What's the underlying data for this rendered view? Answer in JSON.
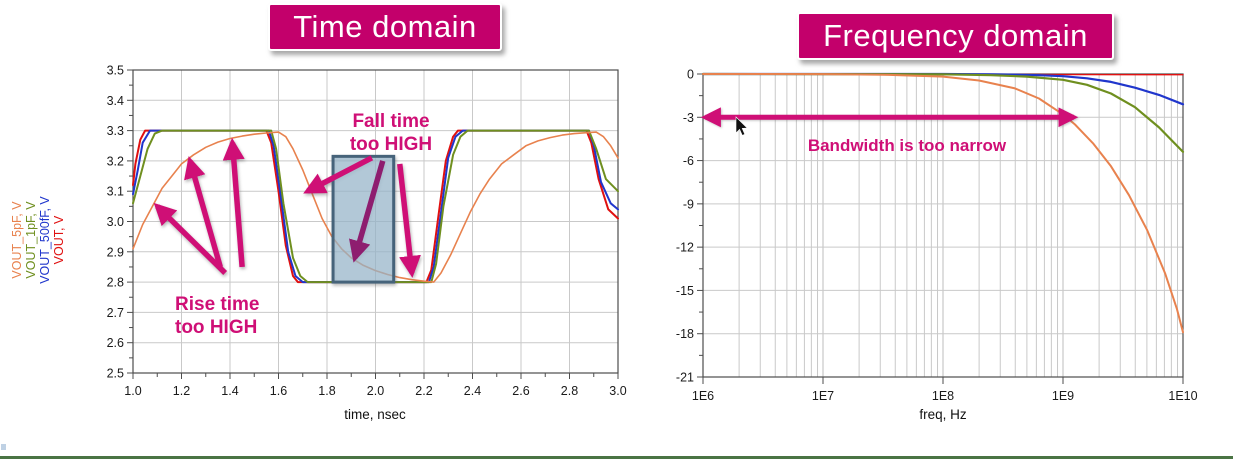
{
  "titles": {
    "time_domain": "Time domain",
    "frequency_domain": "Frequency domain"
  },
  "colors": {
    "badge_bg": "#c3006b",
    "badge_text": "#ffffff",
    "annotation_bright": "#cf0f76",
    "annotation_dark": "#8e1d6f",
    "trace_red": "#e01010",
    "trace_blue": "#2036cc",
    "trace_green": "#6f8f1f",
    "trace_orange": "#e8824e",
    "grid": "#c9c9c9",
    "axis": "#4d4d4d",
    "tick_text": "#1a1a1a",
    "highlight_fill": "#9fc4dc",
    "highlight_border": "#46637a",
    "footer_green": "#4a7444"
  },
  "icons": {
    "mouse_cursor": "black-arrow-pointer-icon"
  },
  "chart_data": [
    {
      "type": "line",
      "domain": "time",
      "xlabel": "time, nsec",
      "xlim": [
        1.0,
        3.0
      ],
      "xtick_labels": [
        "1.0",
        "1.2",
        "1.4",
        "1.6",
        "1.8",
        "2.0",
        "2.2",
        "2.4",
        "2.6",
        "2.8",
        "3.0"
      ],
      "ylim": [
        2.5,
        3.5
      ],
      "ytick_labels": [
        "2.5",
        "2.6",
        "2.7",
        "2.8",
        "2.9",
        "3.0",
        "3.1",
        "3.2",
        "3.3",
        "3.4",
        "3.5"
      ],
      "grid": true,
      "y_axis_series_labels": [
        {
          "text": "VOUT_5pF, V",
          "color_key": "trace_orange"
        },
        {
          "text": "VOUT_1pF, V",
          "color_key": "trace_green"
        },
        {
          "text": "VOUT_500fF, V",
          "color_key": "trace_blue"
        },
        {
          "text": "VOUT, V",
          "color_key": "trace_red"
        }
      ],
      "series": [
        {
          "name": "VOUT, V",
          "color_key": "trace_red",
          "width": 2,
          "points": [
            [
              1.0,
              3.12
            ],
            [
              1.01,
              3.19
            ],
            [
              1.03,
              3.27
            ],
            [
              1.05,
              3.3
            ],
            [
              1.55,
              3.3
            ],
            [
              1.57,
              3.26
            ],
            [
              1.6,
              3.1
            ],
            [
              1.63,
              2.92
            ],
            [
              1.66,
              2.82
            ],
            [
              1.68,
              2.8
            ],
            [
              2.21,
              2.8
            ],
            [
              2.23,
              2.84
            ],
            [
              2.26,
              3.02
            ],
            [
              2.29,
              3.2
            ],
            [
              2.32,
              3.28
            ],
            [
              2.34,
              3.3
            ],
            [
              2.87,
              3.3
            ],
            [
              2.89,
              3.26
            ],
            [
              2.92,
              3.14
            ],
            [
              2.96,
              3.04
            ],
            [
              3.0,
              3.01
            ]
          ]
        },
        {
          "name": "VOUT_500fF, V",
          "color_key": "trace_blue",
          "width": 2,
          "points": [
            [
              1.0,
              3.09
            ],
            [
              1.02,
              3.17
            ],
            [
              1.04,
              3.26
            ],
            [
              1.07,
              3.3
            ],
            [
              1.56,
              3.3
            ],
            [
              1.58,
              3.25
            ],
            [
              1.61,
              3.08
            ],
            [
              1.64,
              2.9
            ],
            [
              1.67,
              2.82
            ],
            [
              1.7,
              2.8
            ],
            [
              2.22,
              2.8
            ],
            [
              2.24,
              2.85
            ],
            [
              2.27,
              3.03
            ],
            [
              2.3,
              3.21
            ],
            [
              2.33,
              3.28
            ],
            [
              2.36,
              3.3
            ],
            [
              2.88,
              3.3
            ],
            [
              2.9,
              3.25
            ],
            [
              2.93,
              3.13
            ],
            [
              2.97,
              3.06
            ],
            [
              3.0,
              3.04
            ]
          ]
        },
        {
          "name": "VOUT_1pF, V",
          "color_key": "trace_green",
          "width": 2,
          "points": [
            [
              1.0,
              3.06
            ],
            [
              1.03,
              3.15
            ],
            [
              1.06,
              3.24
            ],
            [
              1.09,
              3.29
            ],
            [
              1.12,
              3.3
            ],
            [
              1.57,
              3.3
            ],
            [
              1.59,
              3.24
            ],
            [
              1.62,
              3.06
            ],
            [
              1.66,
              2.88
            ],
            [
              1.69,
              2.82
            ],
            [
              1.72,
              2.8
            ],
            [
              2.23,
              2.8
            ],
            [
              2.25,
              2.86
            ],
            [
              2.28,
              3.05
            ],
            [
              2.32,
              3.22
            ],
            [
              2.35,
              3.28
            ],
            [
              2.38,
              3.3
            ],
            [
              2.88,
              3.3
            ],
            [
              2.91,
              3.24
            ],
            [
              2.95,
              3.14
            ],
            [
              3.0,
              3.1
            ]
          ]
        },
        {
          "name": "VOUT_5pF, V",
          "color_key": "trace_orange",
          "width": 1.6,
          "points": [
            [
              1.0,
              2.91
            ],
            [
              1.04,
              2.99
            ],
            [
              1.08,
              3.05
            ],
            [
              1.12,
              3.11
            ],
            [
              1.16,
              3.15
            ],
            [
              1.2,
              3.19
            ],
            [
              1.25,
              3.22
            ],
            [
              1.3,
              3.245
            ],
            [
              1.35,
              3.262
            ],
            [
              1.4,
              3.274
            ],
            [
              1.45,
              3.282
            ],
            [
              1.5,
              3.288
            ],
            [
              1.55,
              3.292
            ],
            [
              1.6,
              3.295
            ],
            [
              1.63,
              3.28
            ],
            [
              1.66,
              3.24
            ],
            [
              1.7,
              3.17
            ],
            [
              1.74,
              3.09
            ],
            [
              1.78,
              3.01
            ],
            [
              1.82,
              2.95
            ],
            [
              1.86,
              2.91
            ],
            [
              1.9,
              2.88
            ],
            [
              1.95,
              2.855
            ],
            [
              2.0,
              2.838
            ],
            [
              2.05,
              2.825
            ],
            [
              2.1,
              2.815
            ],
            [
              2.15,
              2.808
            ],
            [
              2.2,
              2.803
            ],
            [
              2.24,
              2.8
            ],
            [
              2.27,
              2.83
            ],
            [
              2.31,
              2.89
            ],
            [
              2.35,
              2.96
            ],
            [
              2.39,
              3.03
            ],
            [
              2.43,
              3.09
            ],
            [
              2.47,
              3.14
            ],
            [
              2.52,
              3.19
            ],
            [
              2.57,
              3.22
            ],
            [
              2.62,
              3.25
            ],
            [
              2.67,
              3.266
            ],
            [
              2.72,
              3.277
            ],
            [
              2.77,
              3.285
            ],
            [
              2.82,
              3.29
            ],
            [
              2.87,
              3.293
            ],
            [
              2.91,
              3.295
            ],
            [
              2.94,
              3.28
            ],
            [
              2.97,
              3.25
            ],
            [
              3.0,
              3.21
            ]
          ]
        }
      ],
      "annotations": {
        "rise_label_lines": [
          "Rise time",
          "too HIGH"
        ],
        "fall_label_lines": [
          "Fall time",
          "too HIGH"
        ],
        "rise_arrows": [
          {
            "from": [
              1.38,
              2.83
            ],
            "to": [
              1.1,
              3.05
            ],
            "tone": "bright"
          },
          {
            "from": [
              1.36,
              2.85
            ],
            "to": [
              1.235,
              3.2
            ],
            "tone": "bright"
          },
          {
            "from": [
              1.45,
              2.85
            ],
            "to": [
              1.41,
              3.26
            ],
            "tone": "bright"
          }
        ],
        "fall_arrows": [
          {
            "from": [
              1.985,
              3.21
            ],
            "to": [
              1.72,
              3.1
            ],
            "tone": "bright"
          },
          {
            "from": [
              2.03,
              3.2
            ],
            "to": [
              1.915,
              2.88
            ],
            "tone": "dark"
          },
          {
            "from": [
              2.1,
              3.19
            ],
            "to": [
              2.15,
              2.83
            ],
            "tone": "bright"
          }
        ],
        "highlight_rect": {
          "x1": 1.825,
          "x2": 2.075,
          "y1": 2.8,
          "y2": 3.215
        }
      }
    },
    {
      "type": "line",
      "domain": "frequency",
      "xscale": "log",
      "xlabel": "freq, Hz",
      "xlim_log10": [
        6,
        10
      ],
      "xtick_labels": [
        "1E6",
        "1E7",
        "1E8",
        "1E9",
        "1E10"
      ],
      "ylim": [
        -21,
        0
      ],
      "ytick_labels": [
        "0",
        "-3",
        "-6",
        "-9",
        "-12",
        "-15",
        "-18",
        "-21"
      ],
      "grid": true,
      "series": [
        {
          "name": "VOUT, V",
          "color_key": "trace_red",
          "width": 1.4,
          "points": [
            [
              6,
              0
            ],
            [
              10,
              -0.05
            ]
          ]
        },
        {
          "name": "VOUT_500fF, V",
          "color_key": "trace_blue",
          "width": 2.2,
          "points": [
            [
              6,
              0
            ],
            [
              8.0,
              0
            ],
            [
              8.4,
              -0.02
            ],
            [
              8.8,
              -0.08
            ],
            [
              9.0,
              -0.15
            ],
            [
              9.2,
              -0.3
            ],
            [
              9.4,
              -0.55
            ],
            [
              9.6,
              -0.95
            ],
            [
              9.8,
              -1.45
            ],
            [
              10,
              -2.1
            ]
          ]
        },
        {
          "name": "VOUT_1pF, V",
          "color_key": "trace_green",
          "width": 2.2,
          "points": [
            [
              6,
              0
            ],
            [
              8.0,
              -0.02
            ],
            [
              8.4,
              -0.08
            ],
            [
              8.7,
              -0.18
            ],
            [
              9.0,
              -0.4
            ],
            [
              9.2,
              -0.75
            ],
            [
              9.4,
              -1.35
            ],
            [
              9.6,
              -2.3
            ],
            [
              9.8,
              -3.7
            ],
            [
              10,
              -5.4
            ]
          ]
        },
        {
          "name": "VOUT_5pF, V",
          "color_key": "trace_orange",
          "width": 2,
          "points": [
            [
              6,
              0
            ],
            [
              7.0,
              -0.01
            ],
            [
              7.5,
              -0.05
            ],
            [
              8.0,
              -0.18
            ],
            [
              8.3,
              -0.45
            ],
            [
              8.6,
              -1.0
            ],
            [
              8.8,
              -1.7
            ],
            [
              9.0,
              -2.8
            ],
            [
              9.1,
              -3.5
            ],
            [
              9.25,
              -4.8
            ],
            [
              9.4,
              -6.4
            ],
            [
              9.55,
              -8.4
            ],
            [
              9.7,
              -10.8
            ],
            [
              9.85,
              -13.8
            ],
            [
              9.95,
              -16.3
            ],
            [
              10,
              -17.9
            ]
          ]
        }
      ],
      "annotations": {
        "bandwidth_label": "Bandwidth is too narrow",
        "arrow": {
          "y_db": -3,
          "x_from_log10": 6.02,
          "x_to_log10": 9.09
        }
      }
    }
  ]
}
